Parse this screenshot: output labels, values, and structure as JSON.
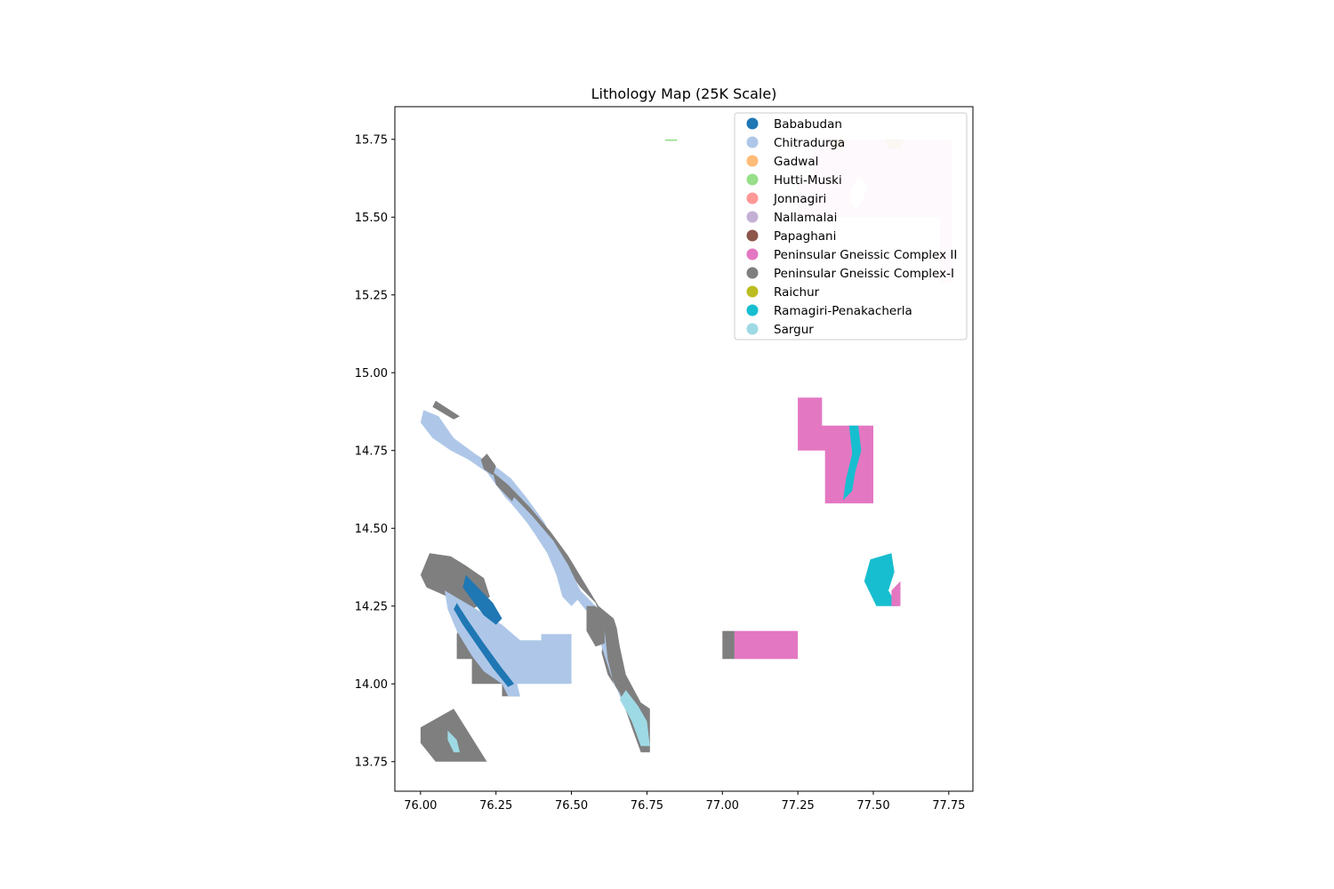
{
  "chart_data": {
    "type": "map",
    "title": "Lithology Map (25K Scale)",
    "xlabel": "",
    "ylabel": "",
    "xlim": [
      75.915,
      77.83
    ],
    "ylim": [
      13.655,
      15.855
    ],
    "x_ticks": [
      "76.00",
      "76.25",
      "76.50",
      "76.75",
      "77.00",
      "77.25",
      "77.50",
      "77.75"
    ],
    "y_ticks": [
      "13.75",
      "14.00",
      "14.25",
      "14.50",
      "14.75",
      "15.00",
      "15.25",
      "15.50",
      "15.75"
    ],
    "legend_position": "top-right",
    "legend": [
      {
        "name": "Bababudan",
        "color": "#1f77b4"
      },
      {
        "name": "Chitradurga",
        "color": "#aec7e8"
      },
      {
        "name": "Gadwal",
        "color": "#ffbb78"
      },
      {
        "name": "Hutti-Muski",
        "color": "#98df8a"
      },
      {
        "name": "Jonnagiri",
        "color": "#ff9896"
      },
      {
        "name": "Nallamalai",
        "color": "#c5b0d5"
      },
      {
        "name": "Papaghani",
        "color": "#8c564b"
      },
      {
        "name": "Peninsular Gneissic Complex II",
        "color": "#e377c2"
      },
      {
        "name": "Peninsular Gneissic Complex-I",
        "color": "#7f7f7f"
      },
      {
        "name": "Raichur",
        "color": "#bcbd22"
      },
      {
        "name": "Ramagiri-Penakacherla",
        "color": "#17becf"
      },
      {
        "name": "Sargur",
        "color": "#9edae5"
      }
    ],
    "regions": [
      {
        "unit": "Peninsular Gneissic Complex-I",
        "color": "#7f7f7f",
        "coords": [
          [
            76.05,
            14.91
          ],
          [
            76.13,
            14.86
          ],
          [
            76.11,
            14.85
          ],
          [
            76.04,
            14.89
          ]
        ]
      },
      {
        "unit": "Chitradurga",
        "color": "#aec7e8",
        "coords": [
          [
            76.01,
            14.88
          ],
          [
            76.06,
            14.86
          ],
          [
            76.11,
            14.79
          ],
          [
            76.18,
            14.74
          ],
          [
            76.26,
            14.69
          ],
          [
            76.3,
            14.66
          ],
          [
            76.35,
            14.6
          ],
          [
            76.41,
            14.52
          ],
          [
            76.44,
            14.46
          ],
          [
            76.47,
            14.38
          ],
          [
            76.5,
            14.32
          ],
          [
            76.52,
            14.27
          ],
          [
            76.5,
            14.25
          ],
          [
            76.47,
            14.28
          ],
          [
            76.45,
            14.35
          ],
          [
            76.42,
            14.42
          ],
          [
            76.38,
            14.48
          ],
          [
            76.33,
            14.55
          ],
          [
            76.28,
            14.6
          ],
          [
            76.22,
            14.68
          ],
          [
            76.16,
            14.72
          ],
          [
            76.1,
            14.75
          ],
          [
            76.04,
            14.79
          ],
          [
            76.0,
            14.84
          ]
        ]
      },
      {
        "unit": "Peninsular Gneissic Complex-I",
        "color": "#7f7f7f",
        "coords": [
          [
            76.22,
            14.74
          ],
          [
            76.25,
            14.7
          ],
          [
            76.24,
            14.67
          ],
          [
            76.21,
            14.69
          ],
          [
            76.2,
            14.72
          ]
        ]
      },
      {
        "unit": "Peninsular Gneissic Complex-I",
        "color": "#7f7f7f",
        "coords": [
          [
            76.24,
            14.68
          ],
          [
            76.29,
            14.64
          ],
          [
            76.36,
            14.57
          ],
          [
            76.43,
            14.49
          ],
          [
            76.49,
            14.41
          ],
          [
            76.54,
            14.33
          ],
          [
            76.59,
            14.25
          ],
          [
            76.64,
            14.21
          ],
          [
            76.65,
            14.18
          ],
          [
            76.66,
            14.12
          ],
          [
            76.68,
            14.03
          ],
          [
            76.73,
            13.94
          ],
          [
            76.76,
            13.92
          ],
          [
            76.76,
            13.78
          ],
          [
            76.73,
            13.78
          ],
          [
            76.7,
            13.86
          ],
          [
            76.66,
            13.97
          ],
          [
            76.62,
            14.03
          ],
          [
            76.6,
            14.1
          ],
          [
            76.61,
            14.18
          ],
          [
            76.58,
            14.26
          ],
          [
            76.53,
            14.31
          ],
          [
            76.47,
            14.39
          ],
          [
            76.41,
            14.46
          ],
          [
            76.36,
            14.53
          ],
          [
            76.3,
            14.59
          ],
          [
            76.25,
            14.64
          ]
        ]
      },
      {
        "unit": "Chitradurga",
        "color": "#aec7e8",
        "coords": [
          [
            76.31,
            14.6
          ],
          [
            76.37,
            14.54
          ],
          [
            76.44,
            14.46
          ],
          [
            76.49,
            14.38
          ],
          [
            76.53,
            14.3
          ],
          [
            76.58,
            14.25
          ],
          [
            76.61,
            14.17
          ],
          [
            76.62,
            14.08
          ],
          [
            76.64,
            14.0
          ],
          [
            76.69,
            13.92
          ],
          [
            76.73,
            13.87
          ],
          [
            76.75,
            13.84
          ],
          [
            76.74,
            13.81
          ],
          [
            76.7,
            13.88
          ],
          [
            76.66,
            13.96
          ],
          [
            76.63,
            14.03
          ],
          [
            76.6,
            14.12
          ],
          [
            76.57,
            14.21
          ],
          [
            76.52,
            14.27
          ],
          [
            76.47,
            14.33
          ],
          [
            76.42,
            14.42
          ],
          [
            76.36,
            14.51
          ],
          [
            76.3,
            14.58
          ]
        ]
      },
      {
        "unit": "Sargur",
        "color": "#9edae5",
        "coords": [
          [
            76.68,
            13.98
          ],
          [
            76.72,
            13.93
          ],
          [
            76.75,
            13.88
          ],
          [
            76.76,
            13.8
          ],
          [
            76.73,
            13.8
          ],
          [
            76.7,
            13.88
          ],
          [
            76.66,
            13.95
          ]
        ]
      },
      {
        "unit": "Peninsular Gneissic Complex-I",
        "color": "#7f7f7f",
        "coords": [
          [
            76.55,
            14.25
          ],
          [
            76.58,
            14.25
          ],
          [
            76.61,
            14.22
          ],
          [
            76.61,
            14.13
          ],
          [
            76.58,
            14.12
          ],
          [
            76.55,
            14.17
          ]
        ]
      },
      {
        "unit": "Peninsular Gneissic Complex-I",
        "color": "#7f7f7f",
        "coords": [
          [
            76.03,
            14.42
          ],
          [
            76.1,
            14.41
          ],
          [
            76.15,
            14.38
          ],
          [
            76.21,
            14.34
          ],
          [
            76.23,
            14.28
          ],
          [
            76.19,
            14.25
          ],
          [
            76.15,
            14.23
          ],
          [
            76.12,
            14.16
          ],
          [
            76.12,
            14.08
          ],
          [
            76.17,
            14.08
          ],
          [
            76.17,
            14.0
          ],
          [
            76.27,
            14.0
          ],
          [
            76.27,
            13.96
          ],
          [
            76.33,
            13.96
          ],
          [
            76.29,
            14.05
          ],
          [
            76.22,
            14.17
          ],
          [
            76.14,
            14.25
          ],
          [
            76.09,
            14.28
          ],
          [
            76.02,
            14.31
          ],
          [
            76.0,
            14.35
          ]
        ]
      },
      {
        "unit": "Chitradurga",
        "color": "#aec7e8",
        "coords": [
          [
            76.08,
            14.3
          ],
          [
            76.15,
            14.26
          ],
          [
            76.22,
            14.22
          ],
          [
            76.27,
            14.19
          ],
          [
            76.33,
            14.14
          ],
          [
            76.4,
            14.14
          ],
          [
            76.4,
            14.16
          ],
          [
            76.5,
            14.16
          ],
          [
            76.5,
            14.0
          ],
          [
            76.32,
            14.0
          ],
          [
            76.33,
            13.96
          ],
          [
            76.29,
            13.96
          ],
          [
            76.27,
            14.0
          ],
          [
            76.21,
            14.04
          ],
          [
            76.17,
            14.09
          ],
          [
            76.12,
            14.17
          ],
          [
            76.09,
            14.24
          ]
        ]
      },
      {
        "unit": "Bababudan",
        "color": "#1f77b4",
        "coords": [
          [
            76.15,
            14.35
          ],
          [
            76.19,
            14.31
          ],
          [
            76.24,
            14.26
          ],
          [
            76.27,
            14.21
          ],
          [
            76.25,
            14.19
          ],
          [
            76.21,
            14.22
          ],
          [
            76.17,
            14.27
          ],
          [
            76.14,
            14.31
          ]
        ]
      },
      {
        "unit": "Bababudan",
        "color": "#1f77b4",
        "coords": [
          [
            76.12,
            14.26
          ],
          [
            76.16,
            14.2
          ],
          [
            76.21,
            14.13
          ],
          [
            76.27,
            14.05
          ],
          [
            76.31,
            14.0
          ],
          [
            76.29,
            13.99
          ],
          [
            76.24,
            14.05
          ],
          [
            76.19,
            14.12
          ],
          [
            76.14,
            14.19
          ],
          [
            76.11,
            14.24
          ]
        ]
      },
      {
        "unit": "Peninsular Gneissic Complex-I",
        "color": "#7f7f7f",
        "coords": [
          [
            76.0,
            13.86
          ],
          [
            76.11,
            13.92
          ],
          [
            76.22,
            13.75
          ],
          [
            76.05,
            13.75
          ],
          [
            76.0,
            13.81
          ]
        ]
      },
      {
        "unit": "Sargur",
        "color": "#9edae5",
        "coords": [
          [
            76.09,
            13.85
          ],
          [
            76.12,
            13.82
          ],
          [
            76.13,
            13.78
          ],
          [
            76.11,
            13.78
          ],
          [
            76.09,
            13.82
          ]
        ]
      },
      {
        "unit": "Peninsular Gneissic Complex II",
        "color": "#e377c2",
        "coords": [
          [
            77.25,
            14.92
          ],
          [
            77.33,
            14.92
          ],
          [
            77.33,
            14.83
          ],
          [
            77.5,
            14.83
          ],
          [
            77.5,
            14.58
          ],
          [
            77.34,
            14.58
          ],
          [
            77.34,
            14.75
          ],
          [
            77.25,
            14.75
          ]
        ]
      },
      {
        "unit": "Ramagiri-Penakacherla",
        "color": "#17becf",
        "coords": [
          [
            77.42,
            14.83
          ],
          [
            77.45,
            14.83
          ],
          [
            77.46,
            14.75
          ],
          [
            77.44,
            14.68
          ],
          [
            77.43,
            14.62
          ],
          [
            77.4,
            14.59
          ],
          [
            77.41,
            14.66
          ],
          [
            77.43,
            14.74
          ]
        ]
      },
      {
        "unit": "Ramagiri-Penakacherla",
        "color": "#17becf",
        "coords": [
          [
            77.49,
            14.4
          ],
          [
            77.56,
            14.42
          ],
          [
            77.57,
            14.36
          ],
          [
            77.55,
            14.3
          ],
          [
            77.58,
            14.25
          ],
          [
            77.51,
            14.25
          ],
          [
            77.49,
            14.29
          ],
          [
            77.47,
            14.33
          ]
        ]
      },
      {
        "unit": "Peninsular Gneissic Complex II",
        "color": "#e377c2",
        "coords": [
          [
            77.56,
            14.3
          ],
          [
            77.59,
            14.33
          ],
          [
            77.59,
            14.25
          ],
          [
            77.56,
            14.25
          ]
        ]
      },
      {
        "unit": "Peninsular Gneissic Complex-I",
        "color": "#7f7f7f",
        "coords": [
          [
            77.0,
            14.17
          ],
          [
            77.04,
            14.17
          ],
          [
            77.04,
            14.08
          ],
          [
            77.0,
            14.08
          ]
        ]
      },
      {
        "unit": "Peninsular Gneissic Complex II",
        "color": "#e377c2",
        "coords": [
          [
            77.04,
            14.17
          ],
          [
            77.25,
            14.17
          ],
          [
            77.25,
            14.08
          ],
          [
            77.04,
            14.08
          ]
        ]
      },
      {
        "unit": "Peninsular Gneissic Complex II",
        "color": "#e377c2",
        "opacity": 0.22,
        "coords": [
          [
            77.34,
            15.75
          ],
          [
            77.76,
            15.75
          ],
          [
            77.76,
            15.29
          ],
          [
            77.72,
            15.29
          ],
          [
            77.72,
            15.5
          ],
          [
            77.25,
            15.5
          ],
          [
            77.25,
            15.62
          ],
          [
            77.3,
            15.62
          ],
          [
            77.3,
            15.75
          ]
        ]
      },
      {
        "unit": "Raichur",
        "color": "#bcbd22",
        "opacity": 0.25,
        "coords": [
          [
            77.35,
            15.75
          ],
          [
            77.41,
            15.75
          ],
          [
            77.4,
            15.72
          ],
          [
            77.36,
            15.72
          ]
        ]
      },
      {
        "unit": "Raichur",
        "color": "#bcbd22",
        "opacity": 0.25,
        "coords": [
          [
            77.54,
            15.75
          ],
          [
            77.6,
            15.75
          ],
          [
            77.59,
            15.72
          ],
          [
            77.55,
            15.72
          ]
        ]
      },
      {
        "unit": "Hutti-Muski",
        "color": "#98df8a",
        "coords": [
          [
            76.81,
            15.75
          ],
          [
            76.85,
            15.75
          ],
          [
            76.85,
            15.745
          ],
          [
            76.81,
            15.745
          ]
        ]
      }
    ]
  }
}
